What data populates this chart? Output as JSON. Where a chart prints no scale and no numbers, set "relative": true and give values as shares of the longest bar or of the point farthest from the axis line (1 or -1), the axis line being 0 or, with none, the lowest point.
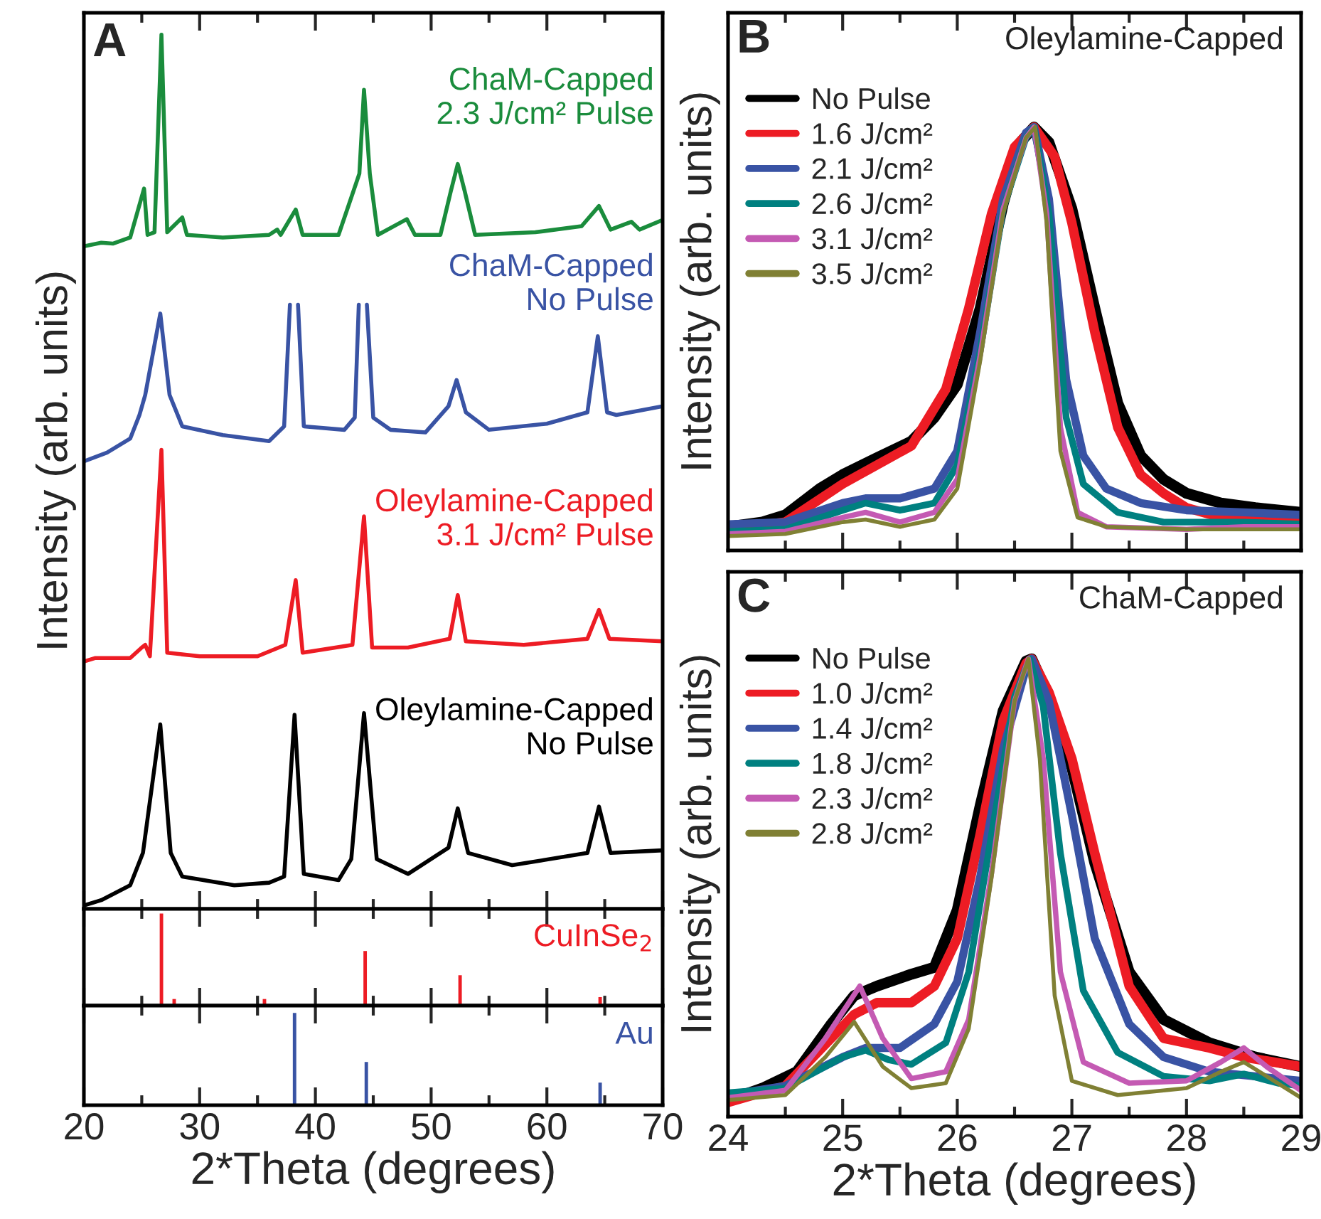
{
  "chart_data": [
    {
      "type": "line",
      "title": "A",
      "ylabel": "Intensity (arb. units)",
      "relative": true,
      "xlim": [
        20,
        70
      ],
      "xticks": [
        20,
        30,
        40,
        50,
        60,
        70
      ],
      "tick_labels": false,
      "legend": false,
      "series": [
        {
          "name": "ChaM-Capped\n2.3 J/cm² Pulse",
          "color": "#1a8c3c",
          "x": [
            20,
            21.5,
            22.5,
            24.0,
            25.2,
            25.5,
            26.1,
            26.7,
            27.2,
            28.5,
            28.9,
            32,
            36,
            36.7,
            37.0,
            38.3,
            38.9,
            42,
            43.8,
            44.2,
            44.7,
            45.4,
            47.9,
            48.6,
            50.8,
            51.7,
            52.3,
            52.9,
            53.8,
            59,
            63,
            64.5,
            65.5,
            67.3,
            68.0,
            70
          ],
          "values": [
            0.758,
            0.762,
            0.761,
            0.768,
            0.824,
            0.771,
            0.774,
            1.0,
            0.774,
            0.791,
            0.771,
            0.768,
            0.771,
            0.777,
            0.771,
            0.8,
            0.771,
            0.771,
            0.841,
            0.937,
            0.841,
            0.771,
            0.789,
            0.771,
            0.771,
            0.821,
            0.852,
            0.821,
            0.771,
            0.774,
            0.781,
            0.804,
            0.777,
            0.786,
            0.777,
            0.788
          ]
        },
        {
          "name": "ChaM-Capped\nNo Pulse",
          "color": "#3953a4",
          "x": [
            20,
            22,
            24,
            24.8,
            25.3,
            26.6,
            27.4,
            28.5,
            32,
            36,
            37.3,
            37.8,
            38.15,
            38.5,
            39.0,
            42.5,
            43.4,
            43.75,
            44.1,
            44.45,
            45.0,
            46.5,
            49.5,
            51.5,
            52.2,
            53.0,
            55,
            60,
            63.5,
            64.4,
            65.2,
            66,
            70
          ],
          "values": [
            0.512,
            0.522,
            0.538,
            0.565,
            0.588,
            0.681,
            0.588,
            0.552,
            0.542,
            0.535,
            0.552,
            0.691,
            null,
            0.691,
            0.552,
            0.548,
            0.562,
            0.691,
            null,
            0.691,
            0.562,
            0.548,
            0.545,
            0.575,
            0.605,
            0.568,
            0.548,
            0.555,
            0.568,
            0.655,
            0.568,
            0.565,
            0.575
          ]
        },
        {
          "name": "Oleylamine-Capped\n3.1 J/cm² Pulse",
          "color": "#ed1c24",
          "x": [
            20,
            21,
            24,
            25.0,
            25.3,
            25.7,
            26.7,
            27.2,
            30,
            35,
            37.4,
            38.3,
            38.9,
            43.2,
            44.2,
            44.9,
            48,
            51.6,
            52.3,
            53,
            58,
            63.5,
            64.5,
            65.4,
            70
          ],
          "values": [
            0.283,
            0.287,
            0.287,
            0.299,
            0.302,
            0.289,
            0.525,
            0.293,
            0.289,
            0.289,
            0.302,
            0.376,
            0.293,
            0.302,
            0.449,
            0.299,
            0.299,
            0.309,
            0.359,
            0.306,
            0.302,
            0.309,
            0.342,
            0.309,
            0.306
          ]
        },
        {
          "name": "Oleylamine-Capped\nNo Pulse",
          "color": "#000000",
          "x": [
            20,
            21.5,
            24.0,
            25.1,
            26.6,
            27.5,
            28.5,
            33,
            36,
            37.3,
            38.2,
            39.0,
            42,
            43.1,
            44.2,
            45.3,
            48,
            51.5,
            52.3,
            53.2,
            57,
            63.5,
            64.5,
            65.5,
            70
          ],
          "values": [
            0.004,
            0.01,
            0.027,
            0.064,
            0.211,
            0.064,
            0.037,
            0.027,
            0.03,
            0.037,
            0.222,
            0.04,
            0.033,
            0.057,
            0.224,
            0.057,
            0.04,
            0.07,
            0.115,
            0.064,
            0.05,
            0.064,
            0.117,
            0.064,
            0.067
          ]
        }
      ]
    },
    {
      "type": "bar",
      "relative": true,
      "xlim": [
        20,
        70
      ],
      "xticks": [
        20,
        30,
        40,
        50,
        60,
        70
      ],
      "tick_labels": false,
      "legend": false,
      "series": [
        {
          "name": "CuInSe$_{2}$",
          "color": "#ed1c24",
          "x": [
            26.7,
            27.8,
            35.6,
            44.3,
            52.5,
            64.6
          ],
          "values": [
            1.0,
            0.072,
            0.072,
            0.593,
            0.33,
            0.093
          ]
        }
      ]
    },
    {
      "type": "bar",
      "relative": true,
      "xlabel": "2*Theta (degrees)",
      "xlim": [
        20,
        70
      ],
      "xticks": [
        20,
        30,
        40,
        50,
        60,
        70
      ],
      "tick_labels": "x",
      "legend": false,
      "series": [
        {
          "name": "Au",
          "color": "#3953a4",
          "x": [
            38.2,
            44.4,
            64.6
          ],
          "values": [
            1.0,
            0.469,
            0.245
          ]
        }
      ]
    },
    {
      "type": "line",
      "title": "B",
      "ylabel": "Intensity (arb. units)",
      "annotations": [
        "Oleylamine-Capped"
      ],
      "relative": true,
      "xlim": [
        24,
        29
      ],
      "xticks": [
        24,
        25,
        26,
        27,
        28,
        29
      ],
      "tick_labels": false,
      "legend": "top left",
      "series": [
        {
          "name": "No Pulse",
          "color": "#000000",
          "x": [
            24.0,
            24.3,
            24.5,
            24.8,
            25.0,
            25.3,
            25.6,
            25.8,
            26.0,
            26.2,
            26.4,
            26.55,
            26.67,
            26.8,
            27.0,
            27.2,
            27.4,
            27.6,
            27.8,
            28.0,
            28.3,
            28.6,
            29.0
          ],
          "values": [
            0.056,
            0.067,
            0.084,
            0.146,
            0.179,
            0.219,
            0.258,
            0.314,
            0.392,
            0.572,
            0.818,
            0.964,
            1.0,
            0.964,
            0.807,
            0.572,
            0.348,
            0.224,
            0.168,
            0.135,
            0.112,
            0.101,
            0.09
          ]
        },
        {
          "name": "1.6 J/cm²",
          "color": "#ed1c24",
          "x": [
            24.0,
            24.5,
            25.0,
            25.3,
            25.6,
            25.9,
            26.1,
            26.3,
            26.5,
            26.67,
            26.85,
            27.0,
            27.2,
            27.4,
            27.6,
            27.8,
            28.0,
            28.3,
            29.0
          ],
          "values": [
            0.05,
            0.067,
            0.157,
            0.202,
            0.247,
            0.381,
            0.572,
            0.796,
            0.953,
            1.0,
            0.93,
            0.774,
            0.516,
            0.291,
            0.179,
            0.135,
            0.101,
            0.078,
            0.067
          ]
        },
        {
          "name": "2.1 J/cm²",
          "color": "#3953a4",
          "x": [
            24.0,
            24.5,
            25.0,
            25.2,
            25.5,
            25.8,
            26.0,
            26.2,
            26.4,
            26.6,
            26.67,
            26.8,
            26.95,
            27.1,
            27.3,
            27.6,
            28.0,
            28.5,
            29.0
          ],
          "values": [
            0.062,
            0.067,
            0.112,
            0.123,
            0.123,
            0.146,
            0.235,
            0.516,
            0.83,
            0.987,
            1.0,
            0.83,
            0.404,
            0.224,
            0.146,
            0.112,
            0.095,
            0.09,
            0.084
          ]
        },
        {
          "name": "2.6 J/cm²",
          "color": "#008080",
          "x": [
            24.0,
            24.5,
            25.0,
            25.2,
            25.5,
            25.8,
            26.0,
            26.2,
            26.4,
            26.6,
            26.67,
            26.8,
            26.95,
            27.1,
            27.4,
            27.8,
            28.5,
            29.0
          ],
          "values": [
            0.045,
            0.05,
            0.095,
            0.112,
            0.095,
            0.112,
            0.202,
            0.471,
            0.807,
            0.975,
            1.0,
            0.796,
            0.314,
            0.157,
            0.09,
            0.067,
            0.067,
            0.062
          ]
        },
        {
          "name": "3.1 J/cm²",
          "color": "#c45ab3",
          "x": [
            24.0,
            24.5,
            25.0,
            25.2,
            25.5,
            25.8,
            26.0,
            26.2,
            26.4,
            26.6,
            26.67,
            26.78,
            26.9,
            27.05,
            27.3,
            28.0,
            28.5,
            29.0
          ],
          "values": [
            0.039,
            0.045,
            0.078,
            0.09,
            0.067,
            0.09,
            0.168,
            0.46,
            0.807,
            0.975,
            1.0,
            0.796,
            0.291,
            0.09,
            0.056,
            0.05,
            0.056,
            0.056
          ]
        },
        {
          "name": "3.5 J/cm²",
          "color": "#808034",
          "x": [
            24.0,
            24.5,
            25.0,
            25.2,
            25.5,
            25.8,
            26.0,
            26.2,
            26.4,
            26.6,
            26.68,
            26.78,
            26.9,
            27.05,
            27.3,
            28.0,
            29.0
          ],
          "values": [
            0.034,
            0.039,
            0.067,
            0.073,
            0.056,
            0.073,
            0.146,
            0.448,
            0.796,
            0.975,
            1.0,
            0.774,
            0.235,
            0.078,
            0.056,
            0.05,
            0.05
          ]
        }
      ]
    },
    {
      "type": "line",
      "title": "C",
      "xlabel": "2*Theta (degrees)",
      "ylabel": "Intensity (arb. units)",
      "annotations": [
        "ChaM-Capped"
      ],
      "relative": true,
      "xlim": [
        24,
        29
      ],
      "xticks": [
        24,
        25,
        26,
        27,
        28,
        29
      ],
      "tick_labels": "x",
      "legend": "top left",
      "series": [
        {
          "name": "No Pulse",
          "color": "#000000",
          "x": [
            24.0,
            24.3,
            24.6,
            24.9,
            25.1,
            25.3,
            25.6,
            25.8,
            26.0,
            26.2,
            26.4,
            26.6,
            26.65,
            26.8,
            27.0,
            27.2,
            27.5,
            27.8,
            28.2,
            28.6,
            29.0
          ],
          "values": [
            0.036,
            0.062,
            0.098,
            0.202,
            0.264,
            0.285,
            0.311,
            0.326,
            0.451,
            0.679,
            0.886,
            0.995,
            1.0,
            0.917,
            0.762,
            0.554,
            0.316,
            0.212,
            0.161,
            0.13,
            0.109
          ]
        },
        {
          "name": "1.0 J/cm²",
          "color": "#ed1c24",
          "x": [
            24.0,
            24.5,
            24.9,
            25.1,
            25.3,
            25.6,
            25.8,
            26.0,
            26.2,
            26.4,
            26.6,
            26.65,
            26.8,
            27.0,
            27.2,
            27.5,
            27.8,
            28.2,
            28.5,
            29.0
          ],
          "values": [
            0.031,
            0.067,
            0.171,
            0.223,
            0.249,
            0.249,
            0.285,
            0.389,
            0.617,
            0.865,
            0.99,
            1.0,
            0.927,
            0.782,
            0.575,
            0.285,
            0.171,
            0.15,
            0.13,
            0.109
          ]
        },
        {
          "name": "1.4 J/cm²",
          "color": "#3953a4",
          "x": [
            24.0,
            24.5,
            25.0,
            25.2,
            25.5,
            25.8,
            26.0,
            26.2,
            26.4,
            26.6,
            26.65,
            26.8,
            27.0,
            27.2,
            27.5,
            27.8,
            28.2,
            28.6,
            29.0
          ],
          "values": [
            0.047,
            0.067,
            0.13,
            0.15,
            0.15,
            0.202,
            0.295,
            0.523,
            0.803,
            0.979,
            1.0,
            0.907,
            0.658,
            0.389,
            0.202,
            0.13,
            0.098,
            0.088,
            0.078
          ]
        },
        {
          "name": "1.8 J/cm²",
          "color": "#008080",
          "x": [
            24.0,
            24.5,
            25.0,
            25.2,
            25.4,
            25.6,
            25.9,
            26.1,
            26.3,
            26.5,
            26.63,
            26.75,
            26.9,
            27.1,
            27.4,
            27.8,
            28.2,
            28.5,
            28.8,
            29.0
          ],
          "values": [
            0.052,
            0.062,
            0.13,
            0.145,
            0.124,
            0.114,
            0.161,
            0.316,
            0.617,
            0.917,
            1.0,
            0.896,
            0.575,
            0.275,
            0.14,
            0.088,
            0.078,
            0.093,
            0.073,
            0.067
          ]
        },
        {
          "name": "2.3 J/cm²",
          "color": "#c45ab3",
          "x": [
            24.0,
            24.5,
            24.85,
            25.15,
            25.35,
            25.6,
            25.9,
            26.1,
            26.3,
            26.5,
            26.62,
            26.75,
            26.9,
            27.1,
            27.5,
            28.0,
            28.3,
            28.5,
            28.7,
            29.0
          ],
          "values": [
            0.041,
            0.057,
            0.171,
            0.285,
            0.171,
            0.083,
            0.098,
            0.212,
            0.534,
            0.907,
            1.0,
            0.782,
            0.316,
            0.119,
            0.073,
            0.078,
            0.119,
            0.15,
            0.109,
            0.057
          ]
        },
        {
          "name": "2.8 J/cm²",
          "color": "#808034",
          "x": [
            24.0,
            24.5,
            24.85,
            25.1,
            25.35,
            25.6,
            25.9,
            26.1,
            26.3,
            26.5,
            26.62,
            26.72,
            26.85,
            27.0,
            27.4,
            28.0,
            28.3,
            28.5,
            28.7,
            29.0
          ],
          "values": [
            0.036,
            0.047,
            0.13,
            0.207,
            0.109,
            0.062,
            0.073,
            0.192,
            0.523,
            0.907,
            1.0,
            0.782,
            0.264,
            0.078,
            0.047,
            0.062,
            0.098,
            0.119,
            0.088,
            0.041
          ]
        }
      ]
    }
  ]
}
